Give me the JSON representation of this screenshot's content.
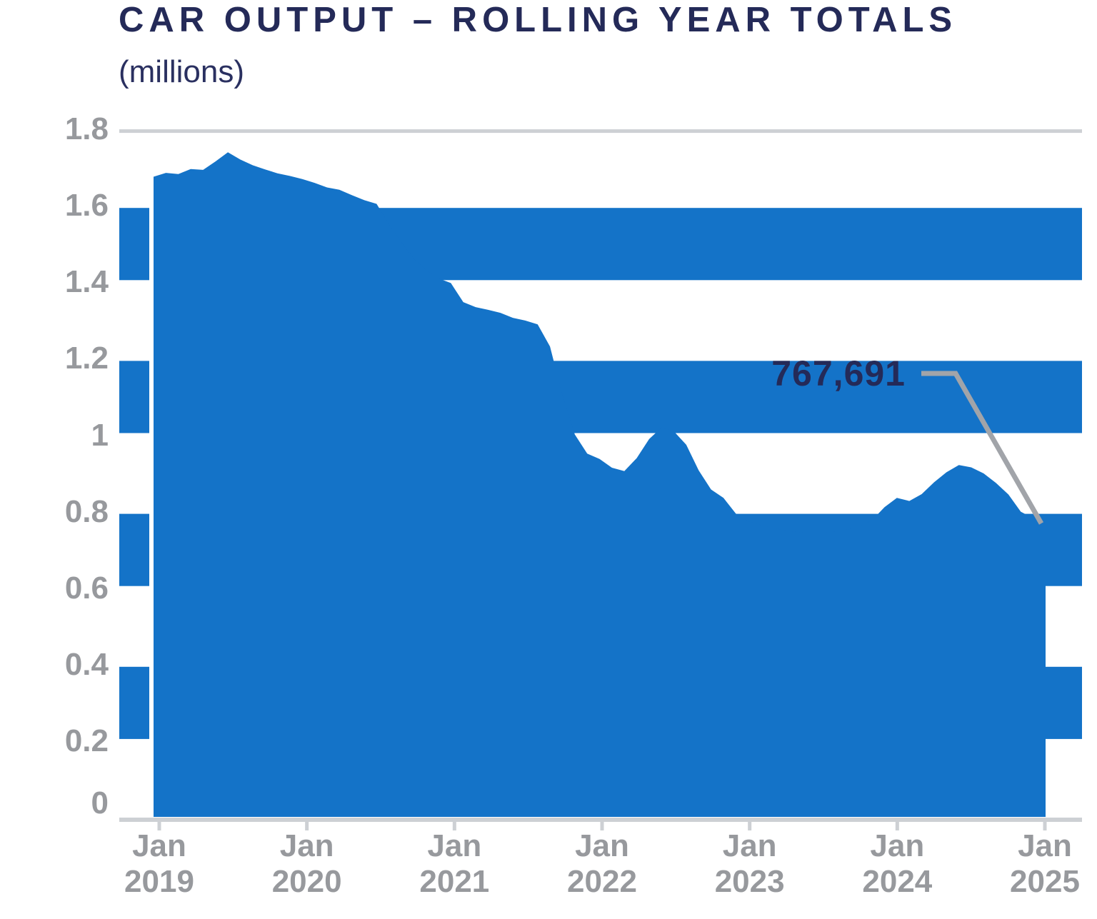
{
  "header": {
    "title": "CAR OUTPUT – ROLLING YEAR TOTALS",
    "subtitle": "(millions)"
  },
  "annotation": {
    "end_value_label": "767,691"
  },
  "colors": {
    "series_blue": "#1473C8",
    "band_blue": "#1473C8",
    "navy_text": "#242A58",
    "axis_label_gray": "#97999D",
    "axis_line_gray": "#CDD0D4",
    "callout_gray": "#A1A4A9",
    "gridline_white": "#FFFFFF"
  },
  "chart_data": {
    "type": "area",
    "title": "CAR OUTPUT – ROLLING YEAR TOTALS",
    "units": "millions",
    "ylabel": "(millions)",
    "xlabel": "",
    "ylim": [
      0,
      1.8
    ],
    "grid": "horizontal bands every 0.2, alternating blue fill",
    "banded_background": [
      [
        1.6,
        1.4
      ],
      [
        1.2,
        1.0
      ],
      [
        0.8,
        0.6
      ],
      [
        0.4,
        0.2
      ]
    ],
    "yticks": [
      "1.8",
      "1.6",
      "1.4",
      "1.2",
      "1",
      "0.8",
      "0.6",
      "0.4",
      "0.2",
      "0"
    ],
    "xticks": [
      {
        "line1": "Jan",
        "line2": "2019"
      },
      {
        "line1": "Jan",
        "line2": "2020"
      },
      {
        "line1": "Jan",
        "line2": "2021"
      },
      {
        "line1": "Jan",
        "line2": "2022"
      },
      {
        "line1": "Jan",
        "line2": "2023"
      },
      {
        "line1": "Jan",
        "line2": "2024"
      },
      {
        "line1": "Jan",
        "line2": "2025"
      }
    ],
    "frequency": "monthly",
    "start_month": "Jan 2019",
    "end_month": "Jan 2025",
    "values_by_year": {
      "2019": [
        1.676,
        1.686,
        1.683,
        1.696,
        1.694,
        1.716,
        1.74,
        1.721,
        1.706,
        1.695,
        1.685,
        1.678
      ],
      "2020": [
        1.67,
        1.66,
        1.648,
        1.642,
        1.628,
        1.615,
        1.605,
        1.552,
        1.505,
        1.462,
        1.432,
        1.41
      ],
      "2021": [
        1.398,
        1.348,
        1.335,
        1.328,
        1.32,
        1.307,
        1.3,
        1.29,
        1.232,
        1.105,
        1.002,
        0.952
      ],
      "2022": [
        0.938,
        0.915,
        0.906,
        0.94,
        0.99,
        1.02,
        1.01,
        0.975,
        0.908,
        0.858,
        0.836,
        0.795
      ],
      "2023": [
        0.775,
        0.765,
        0.757,
        0.751,
        0.747,
        0.744,
        0.744,
        0.748,
        0.753,
        0.762,
        0.778,
        0.812
      ],
      "2024": [
        0.836,
        0.828,
        0.846,
        0.877,
        0.903,
        0.922,
        0.916,
        0.9,
        0.875,
        0.845,
        0.8,
        0.783
      ],
      "2025": [
        0.768
      ]
    },
    "final_value": 0.768,
    "final_value_label": "767,691",
    "legend": "none"
  }
}
